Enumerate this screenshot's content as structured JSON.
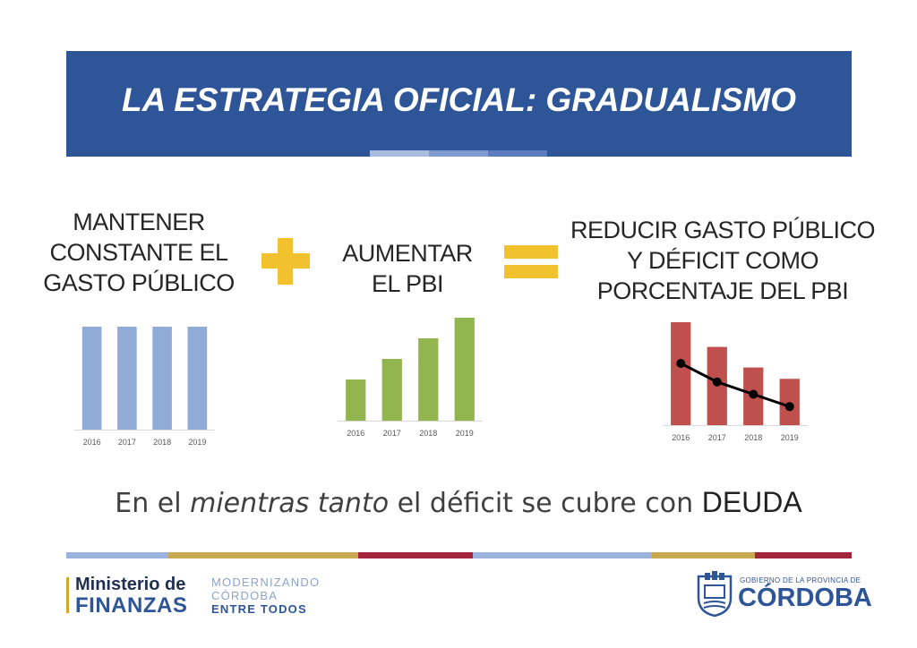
{
  "title": "LA ESTRATEGIA OFICIAL: GRADUALISMO",
  "headings": {
    "left": [
      "MANTENER",
      "CONSTANTE EL",
      "GASTO PÚBLICO"
    ],
    "middle": [
      "AUMENTAR",
      "EL PBI"
    ],
    "right": [
      "REDUCIR GASTO PÚBLICO",
      "Y DÉFICIT COMO",
      "PORCENTAJE DEL PBI"
    ]
  },
  "symbols": {
    "plus": "plus-sign",
    "equals": "equals-sign",
    "color": "#f2c12e"
  },
  "chart_data": [
    {
      "type": "bar",
      "categories": [
        "2016",
        "2017",
        "2018",
        "2019"
      ],
      "values": [
        100,
        100,
        100,
        100
      ],
      "color": "#8fabd6"
    },
    {
      "type": "bar",
      "categories": [
        "2016",
        "2017",
        "2018",
        "2019"
      ],
      "values": [
        40,
        60,
        80,
        100
      ],
      "color": "#92b54f"
    },
    {
      "type": "bar",
      "categories": [
        "2016",
        "2017",
        "2018",
        "2019"
      ],
      "values": [
        100,
        76,
        56,
        45
      ],
      "color": "#c0504d",
      "line": {
        "values": [
          60,
          42,
          30,
          18
        ],
        "color": "#000000"
      }
    }
  ],
  "footer_text": {
    "prefix": "En el ",
    "italic": "mientras tanto",
    "middle": " el déficit se cubre con ",
    "strong": "DEUDA"
  },
  "logos": {
    "ministry_line1": "Ministerio de",
    "ministry_line2": "FINANZAS",
    "slogan": [
      "MODERNIZANDO",
      "CÓRDOBA",
      "ENTRE TODOS"
    ],
    "gov_line1": "GOBIERNO DE LA PROVINCIA DE",
    "gov_line2": "CÓRDOBA"
  },
  "colors": {
    "brand_blue": "#2e5597",
    "gold": "#c9a94f",
    "red": "#a4243b",
    "light_blue": "#9bb3dc"
  }
}
